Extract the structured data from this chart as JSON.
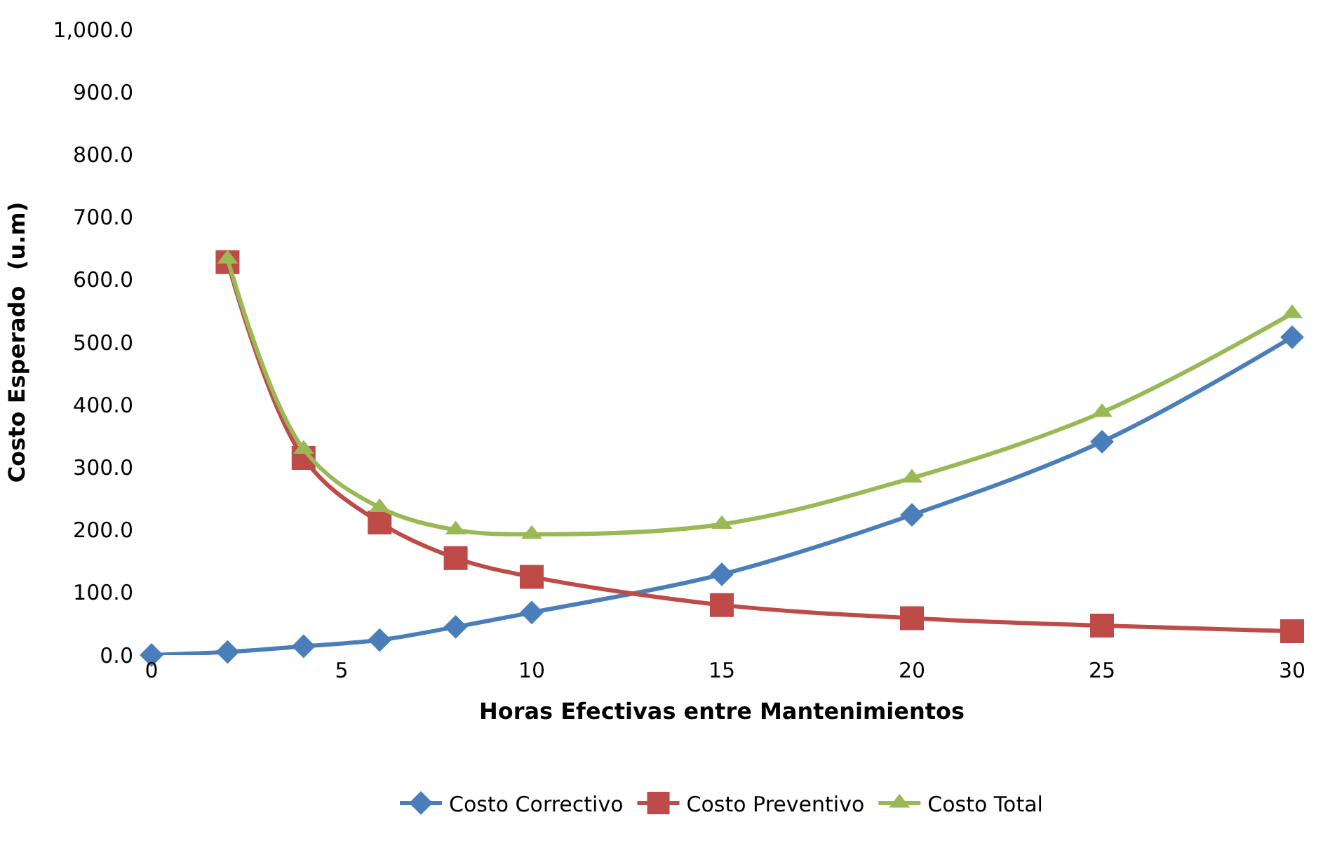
{
  "chart_data": {
    "type": "line",
    "xlabel": "Horas Efectivas entre Mantenimientos",
    "ylabel": "Costo Esperado  (u.m)",
    "x": [
      0,
      2,
      4,
      6,
      8,
      10,
      15,
      20,
      25,
      30
    ],
    "series": [
      {
        "name": "Costo Correctivo",
        "color": "#4a7ebb",
        "marker": "diamond",
        "values": [
          0,
          5,
          14,
          24,
          45,
          68,
          129,
          224,
          341,
          508
        ]
      },
      {
        "name": "Costo Preventivo",
        "color": "#be4b48",
        "marker": "square",
        "values": [
          null,
          628,
          315,
          212,
          155,
          125,
          80,
          59,
          47,
          38
        ]
      },
      {
        "name": "Costo Total",
        "color": "#98b954",
        "marker": "triangle",
        "values": [
          null,
          633,
          329,
          236,
          200,
          193,
          209,
          283,
          388,
          546
        ]
      }
    ],
    "xlim": [
      0,
      30
    ],
    "xticks": [
      0,
      5,
      10,
      15,
      20,
      25,
      30
    ],
    "ylim": [
      0,
      1000
    ],
    "yticks": [
      {
        "value": 0,
        "label": "0.0"
      },
      {
        "value": 100,
        "label": "100.0"
      },
      {
        "value": 200,
        "label": "200.0"
      },
      {
        "value": 300,
        "label": "300.0"
      },
      {
        "value": 400,
        "label": "400.0"
      },
      {
        "value": 500,
        "label": "500.0"
      },
      {
        "value": 600,
        "label": "600.0"
      },
      {
        "value": 700,
        "label": "700.0"
      },
      {
        "value": 800,
        "label": "800.0"
      },
      {
        "value": 900,
        "label": "900.0"
      },
      {
        "value": 1000,
        "label": "1,000.0"
      }
    ],
    "legend": "bottom",
    "line_style": "solid"
  }
}
